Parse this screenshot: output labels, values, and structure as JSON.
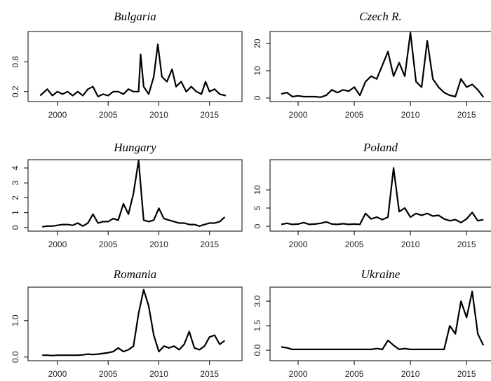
{
  "chart_data": [
    {
      "type": "line",
      "title": "Bulgaria",
      "x": [
        1998.3,
        1999,
        1999.5,
        2000,
        2000.5,
        2001,
        2001.5,
        2002,
        2002.5,
        2003,
        2003.5,
        2004,
        2004.5,
        2005,
        2005.5,
        2006,
        2006.5,
        2007,
        2007.5,
        2008,
        2008.2,
        2008.5,
        2009,
        2009.5,
        2009.9,
        2010.3,
        2010.8,
        2011.3,
        2011.7,
        2012.2,
        2012.7,
        2013.2,
        2013.7,
        2014.2,
        2014.6,
        2015,
        2015.5,
        2016,
        2016.6
      ],
      "values": [
        0.12,
        0.25,
        0.12,
        0.2,
        0.15,
        0.2,
        0.12,
        0.2,
        0.12,
        0.25,
        0.3,
        0.1,
        0.15,
        0.12,
        0.2,
        0.2,
        0.15,
        0.25,
        0.2,
        0.2,
        0.95,
        0.3,
        0.15,
        0.5,
        1.15,
        0.5,
        0.4,
        0.65,
        0.3,
        0.4,
        0.2,
        0.3,
        0.2,
        0.15,
        0.4,
        0.2,
        0.25,
        0.15,
        0.12
      ],
      "color": "#000000",
      "xlim": [
        1997.1,
        2018.2
      ],
      "xticks": [
        2000,
        2005,
        2010,
        2015
      ],
      "ylim": [
        0.0,
        1.41
      ],
      "yticks": [
        0.2,
        0.8
      ]
    },
    {
      "type": "line",
      "title": "Czech R.",
      "x": [
        1998.5,
        1999,
        1999.5,
        2000,
        2000.5,
        2001,
        2001.5,
        2002,
        2002.5,
        2003,
        2003.5,
        2004,
        2004.5,
        2005,
        2005.5,
        2006,
        2006.5,
        2007,
        2007.5,
        2008,
        2008.5,
        2009,
        2009.5,
        2010,
        2010.5,
        2011,
        2011.5,
        2012,
        2012.5,
        2013,
        2013.5,
        2014,
        2014.5,
        2015,
        2015.5,
        2016,
        2016.5
      ],
      "values": [
        1.5,
        2,
        0.5,
        0.8,
        0.5,
        0.5,
        0.5,
        0.3,
        1,
        3,
        2,
        3,
        2.5,
        4,
        1,
        6,
        8,
        7,
        12,
        17,
        8,
        13,
        8,
        24,
        6,
        4,
        21,
        7,
        4,
        2,
        1,
        0.5,
        7,
        4,
        5,
        3,
        0.3
      ],
      "color": "#000000",
      "xlim": [
        1997.5,
        2017.3
      ],
      "xticks": [
        2000,
        2005,
        2010,
        2015
      ],
      "ylim": [
        -1.3,
        24.4
      ],
      "yticks": [
        0,
        10,
        20
      ]
    },
    {
      "type": "line",
      "title": "Hungary",
      "x": [
        1998.5,
        1999,
        1999.5,
        2000,
        2000.5,
        2001,
        2001.5,
        2002,
        2002.5,
        2003,
        2003.5,
        2004,
        2004.5,
        2005,
        2005.5,
        2006,
        2006.5,
        2007,
        2007.5,
        2008,
        2008.5,
        2009,
        2009.5,
        2010,
        2010.5,
        2011,
        2011.5,
        2012,
        2012.5,
        2013,
        2013.5,
        2014,
        2014.5,
        2015,
        2015.5,
        2016,
        2016.5
      ],
      "values": [
        0.05,
        0.1,
        0.1,
        0.15,
        0.2,
        0.2,
        0.15,
        0.3,
        0.1,
        0.3,
        0.9,
        0.3,
        0.4,
        0.4,
        0.6,
        0.5,
        1.6,
        0.9,
        2.3,
        4.5,
        0.5,
        0.4,
        0.5,
        1.3,
        0.6,
        0.5,
        0.4,
        0.3,
        0.3,
        0.2,
        0.2,
        0.1,
        0.2,
        0.3,
        0.3,
        0.4,
        0.7
      ],
      "color": "#000000",
      "xlim": [
        1997.1,
        2018.2
      ],
      "xticks": [
        2000,
        2005,
        2010,
        2015
      ],
      "ylim": [
        -0.24,
        4.56
      ],
      "yticks": [
        0,
        1,
        2,
        3,
        4
      ]
    },
    {
      "type": "line",
      "title": "Poland",
      "x": [
        1998.5,
        1999,
        1999.5,
        2000,
        2000.5,
        2001,
        2001.5,
        2002,
        2002.5,
        2003,
        2003.5,
        2004,
        2004.5,
        2005,
        2005.5,
        2006,
        2006.5,
        2007,
        2007.5,
        2008,
        2008.5,
        2009,
        2009.5,
        2010,
        2010.5,
        2011,
        2011.5,
        2012,
        2012.5,
        2013,
        2013.5,
        2014,
        2014.5,
        2015,
        2015.5,
        2016,
        2016.5
      ],
      "values": [
        0.5,
        0.8,
        0.5,
        0.6,
        1,
        0.5,
        0.6,
        0.8,
        1.2,
        0.6,
        0.5,
        0.7,
        0.5,
        0.6,
        0.5,
        3.5,
        2,
        2.5,
        1.8,
        2.5,
        16,
        4,
        5,
        2.5,
        3.5,
        3,
        3.5,
        2.8,
        3,
        2,
        1.5,
        1.8,
        1,
        2,
        3.8,
        1.5,
        1.8
      ],
      "color": "#000000",
      "xlim": [
        1997.5,
        2017.3
      ],
      "xticks": [
        2000,
        2005,
        2010,
        2015
      ],
      "ylim": [
        -1.35,
        18.3
      ],
      "yticks": [
        0,
        5,
        10
      ]
    },
    {
      "type": "line",
      "title": "Romania",
      "x": [
        1998.5,
        1999,
        1999.5,
        2000,
        2000.5,
        2001,
        2001.5,
        2002,
        2002.5,
        2003,
        2003.5,
        2004,
        2004.5,
        2005,
        2005.5,
        2006,
        2006.5,
        2007,
        2007.5,
        2008,
        2008.5,
        2009,
        2009.5,
        2010,
        2010.5,
        2011,
        2011.5,
        2012,
        2012.5,
        2013,
        2013.5,
        2014,
        2014.5,
        2015,
        2015.5,
        2016,
        2016.5
      ],
      "values": [
        0.05,
        0.05,
        0.04,
        0.05,
        0.05,
        0.05,
        0.05,
        0.05,
        0.06,
        0.08,
        0.07,
        0.08,
        0.1,
        0.12,
        0.15,
        0.25,
        0.15,
        0.2,
        0.3,
        1.2,
        1.85,
        1.4,
        0.6,
        0.15,
        0.3,
        0.25,
        0.3,
        0.2,
        0.35,
        0.7,
        0.25,
        0.2,
        0.3,
        0.55,
        0.6,
        0.35,
        0.45
      ],
      "color": "#000000",
      "xlim": [
        1997.1,
        2018.2
      ],
      "xticks": [
        2000,
        2005,
        2010,
        2015
      ],
      "ylim": [
        -0.1,
        1.92
      ],
      "yticks": [
        {
          "value": 0,
          "label": "0.0"
        },
        {
          "value": 1,
          "label": "1.0"
        }
      ]
    },
    {
      "type": "line",
      "title": "Ukraine",
      "x": [
        1998.5,
        1999,
        1999.5,
        2000,
        2000.5,
        2001,
        2001.5,
        2002,
        2002.5,
        2003,
        2003.5,
        2004,
        2004.5,
        2005,
        2005.5,
        2006,
        2006.5,
        2007,
        2007.5,
        2008,
        2008.5,
        2009,
        2009.5,
        2010,
        2010.5,
        2011,
        2011.5,
        2012,
        2012.5,
        2013,
        2013.5,
        2014,
        2014.5,
        2015,
        2015.5,
        2016,
        2016.5
      ],
      "values": [
        0.2,
        0.15,
        0.05,
        0.05,
        0.05,
        0.05,
        0.05,
        0.05,
        0.05,
        0.05,
        0.05,
        0.05,
        0.05,
        0.05,
        0.05,
        0.05,
        0.05,
        0.1,
        0.05,
        0.6,
        0.3,
        0.05,
        0.1,
        0.05,
        0.05,
        0.05,
        0.05,
        0.05,
        0.05,
        0.05,
        1.5,
        1.0,
        3.0,
        2.0,
        3.6,
        1.0,
        0.3
      ],
      "color": "#000000",
      "xlim": [
        1997.5,
        2017.3
      ],
      "xticks": [
        2000,
        2005,
        2010,
        2015
      ],
      "ylim": [
        -0.64,
        3.86
      ],
      "yticks": [
        {
          "value": 0,
          "label": "0.0"
        },
        1.5,
        {
          "value": 3,
          "label": "3.0"
        }
      ]
    }
  ]
}
